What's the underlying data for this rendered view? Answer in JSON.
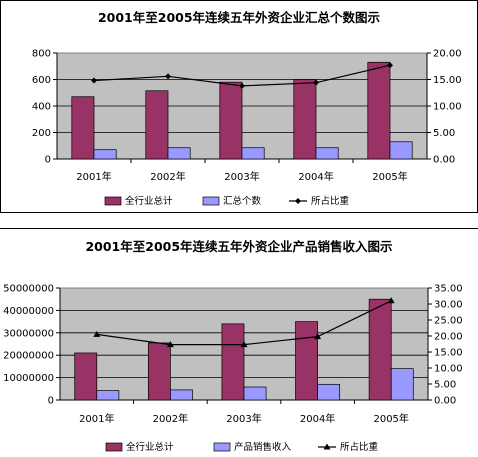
{
  "chart_data": [
    {
      "type": "bar",
      "title": "2001年至2005年连续五年外资企业汇总个数图示",
      "categories": [
        "2001年",
        "2002年",
        "2003年",
        "2004年",
        "2005年"
      ],
      "series": [
        {
          "name": "全行业总计",
          "type": "bar",
          "axis": "left",
          "color": "#993366",
          "values": [
            470,
            515,
            580,
            600,
            730
          ]
        },
        {
          "name": "汇总个数",
          "type": "bar",
          "axis": "left",
          "color": "#9999ff",
          "values": [
            70,
            85,
            85,
            85,
            130
          ]
        },
        {
          "name": "所占比重",
          "type": "line",
          "axis": "right",
          "color": "#000000",
          "marker": "diamond",
          "values": [
            14.8,
            15.6,
            13.8,
            14.4,
            17.7
          ]
        }
      ],
      "y_left": {
        "min": 0,
        "max": 800,
        "ticks": [
          "0",
          "200",
          "400",
          "600",
          "800"
        ]
      },
      "y_right": {
        "min": 0,
        "max": 20,
        "ticks": [
          "0.00",
          "5.00",
          "10.00",
          "15.00",
          "20.00"
        ]
      },
      "grid": true,
      "plot_background": "#c0c0c0",
      "legend": "bottom"
    },
    {
      "type": "bar",
      "title": "2001年至2005年连续五年外资企业产品销售收入图示",
      "categories": [
        "2001年",
        "2002年",
        "2003年",
        "2004年",
        "2005年"
      ],
      "series": [
        {
          "name": "全行业总计",
          "type": "bar",
          "axis": "left",
          "color": "#993366",
          "values": [
            21000000,
            25500000,
            34000000,
            35000000,
            45000000
          ]
        },
        {
          "name": "产品销售收入",
          "type": "bar",
          "axis": "left",
          "color": "#9999ff",
          "values": [
            4200000,
            4500000,
            5800000,
            7000000,
            14000000
          ]
        },
        {
          "name": "所占比重",
          "type": "line",
          "axis": "right",
          "color": "#000000",
          "marker": "triangle",
          "values": [
            20.5,
            17.3,
            17.3,
            19.8,
            31.0
          ]
        }
      ],
      "y_left": {
        "min": 0,
        "max": 50000000,
        "ticks": [
          "0",
          "10000000",
          "20000000",
          "30000000",
          "40000000",
          "50000000"
        ]
      },
      "y_right": {
        "min": 0,
        "max": 35,
        "ticks": [
          "0.00",
          "5.00",
          "10.00",
          "15.00",
          "20.00",
          "25.00",
          "30.00",
          "35.00"
        ]
      },
      "grid": true,
      "plot_background": "#c0c0c0",
      "legend": "bottom"
    }
  ]
}
